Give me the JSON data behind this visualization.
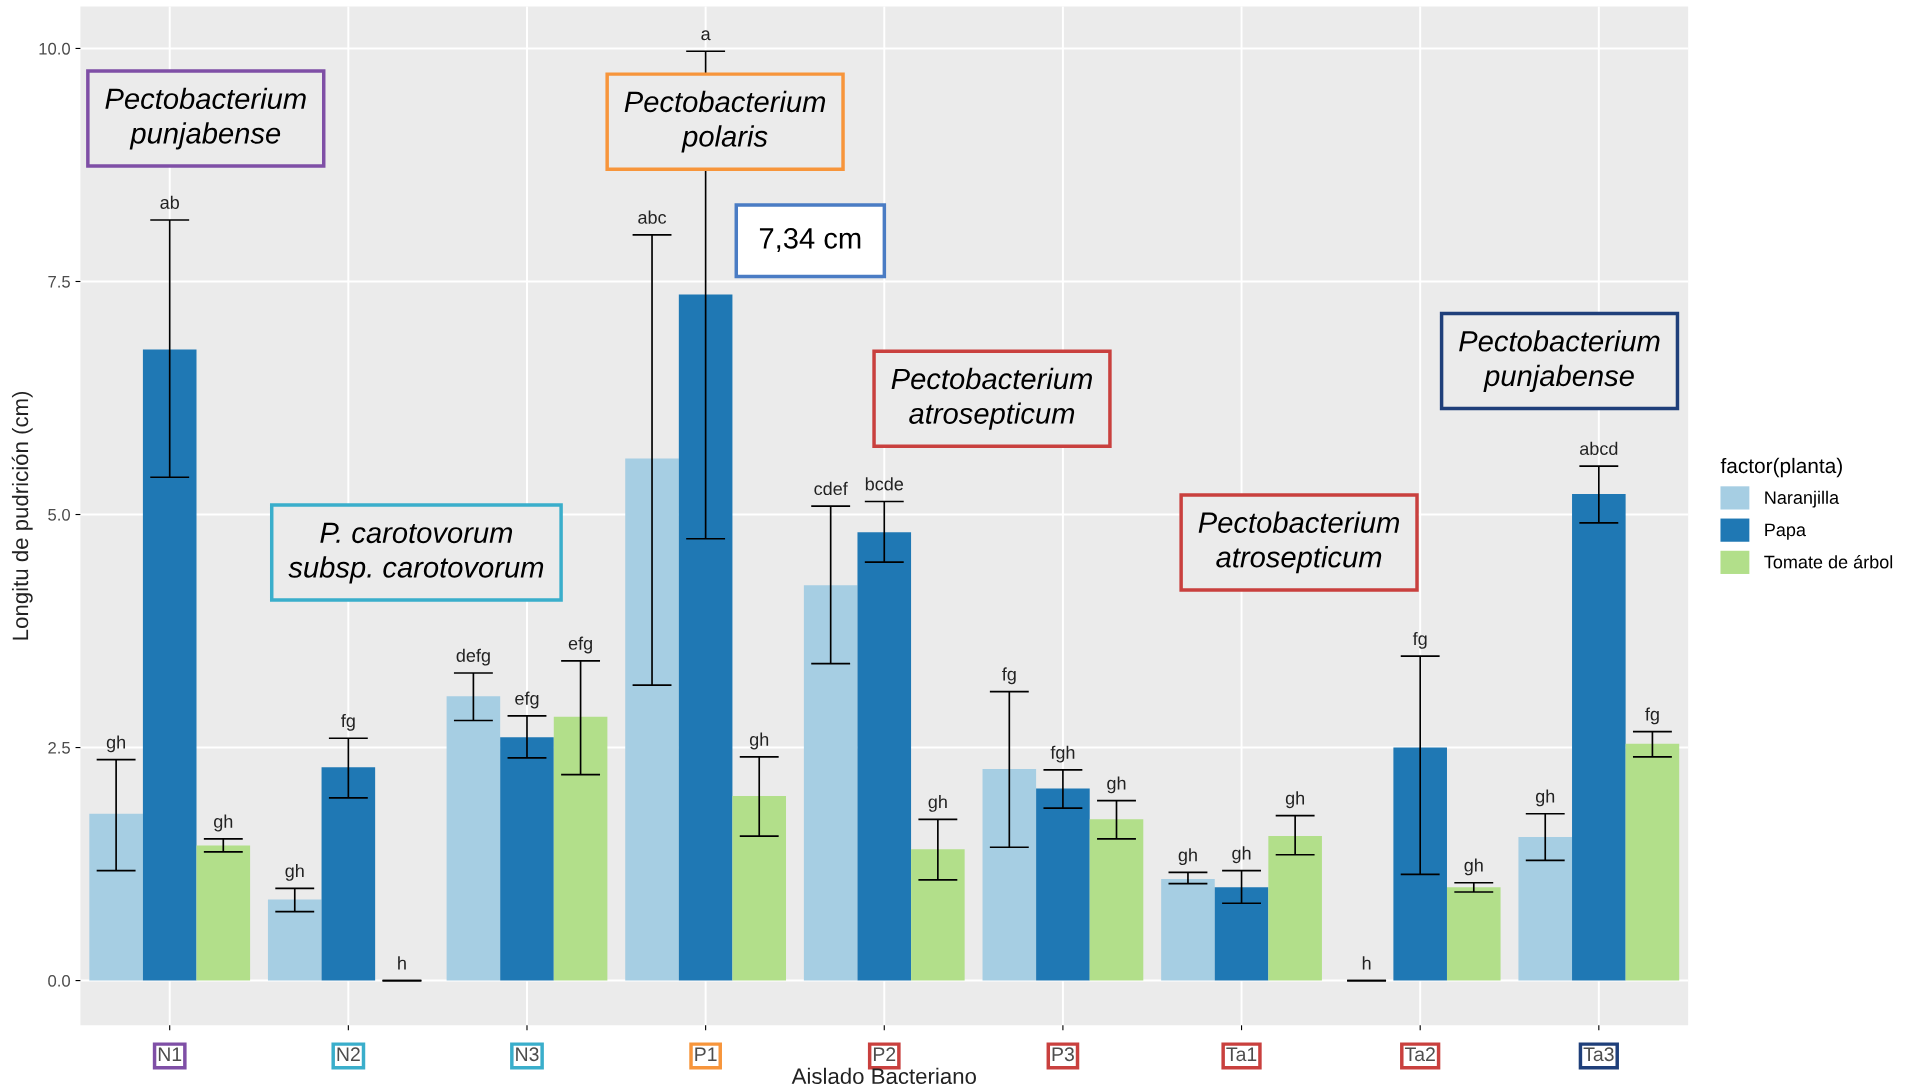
{
  "chart_data": {
    "type": "bar",
    "xlabel": "Aislado Bacteriano",
    "ylabel": "Longitu de pudrición (cm)",
    "legend_title": "factor(planta)",
    "categories": [
      "N1",
      "N2",
      "N3",
      "P1",
      "P2",
      "P3",
      "Ta1",
      "Ta2",
      "Ta3"
    ],
    "series": [
      {
        "name": "Naranjilla",
        "color": "#a6cee3",
        "values": [
          1.79,
          0.87,
          3.05,
          5.6,
          4.24,
          2.27,
          1.09,
          0,
          1.54
        ],
        "errors": [
          [
            1.18,
            2.37
          ],
          [
            0.74,
            0.99
          ],
          [
            2.79,
            3.3
          ],
          [
            3.17,
            8.0
          ],
          [
            3.4,
            5.09
          ],
          [
            1.43,
            3.1
          ],
          [
            1.04,
            1.16
          ],
          [
            0,
            0
          ],
          [
            1.29,
            1.79
          ]
        ]
      },
      {
        "name": "Papa",
        "color": "#1f78b4",
        "values": [
          6.77,
          2.29,
          2.61,
          7.36,
          4.81,
          2.06,
          1.0,
          2.5,
          5.22
        ],
        "errors": [
          [
            5.4,
            8.16
          ],
          [
            1.96,
            2.6
          ],
          [
            2.39,
            2.84
          ],
          [
            4.74,
            9.97
          ],
          [
            4.49,
            5.14
          ],
          [
            1.85,
            2.26
          ],
          [
            0.83,
            1.18
          ],
          [
            1.14,
            3.48
          ],
          [
            4.91,
            5.52
          ]
        ]
      },
      {
        "name": "Tomate de árbol",
        "color": "#b2df8a",
        "values": [
          1.45,
          0,
          2.83,
          1.98,
          1.41,
          1.73,
          1.55,
          1.0,
          2.54
        ],
        "errors": [
          [
            1.38,
            1.52
          ],
          [
            0,
            0
          ],
          [
            2.21,
            3.43
          ],
          [
            1.55,
            2.4
          ],
          [
            1.08,
            1.73
          ],
          [
            1.52,
            1.93
          ],
          [
            1.35,
            1.77
          ],
          [
            0.95,
            1.05
          ],
          [
            2.4,
            2.67
          ]
        ]
      }
    ],
    "ylim": [
      -0.48,
      10.45
    ],
    "yticks": [
      {
        "value": 0,
        "label": "0.0"
      },
      {
        "value": 2.5,
        "label": "2.5"
      },
      {
        "value": 5,
        "label": "5.0"
      },
      {
        "value": 7.5,
        "label": "7.5"
      },
      {
        "value": 10,
        "label": "10.0"
      }
    ],
    "grid": true,
    "legend": "right",
    "annotations": [
      "Pectobacterium\npunjabense",
      "Pectobacterium\npolaris",
      "7,34 cm",
      "P. carotovorum\nsubsp. carotovorum",
      "Pectobacterium\natrosepticum",
      "Pectobacterium\natrosepticum",
      "Pectobacterium\npunjabense",
      "gh",
      "ab",
      "gh",
      "gh",
      "fg",
      "h",
      "defg",
      "efg",
      "efg",
      "abc",
      "a",
      "gh",
      "cdef",
      "bcde",
      "gh",
      "fg",
      "fgh",
      "gh",
      "gh",
      "gh",
      "gh",
      "h",
      "fg",
      "gh",
      "gh",
      "abcd",
      "fg"
    ]
  }
}
